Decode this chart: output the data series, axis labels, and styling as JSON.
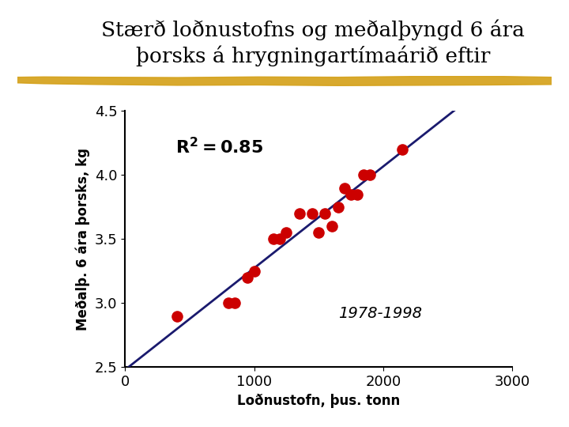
{
  "title": "Stærð loðnustofns og meðalþyngd 6 ára\nþorsks á hrygningartímaárið eftir",
  "xlabel": "Loðnustofn, þus. tonn",
  "ylabel": "Meðalþ. 6 ára þorsks, kg",
  "scatter_x": [
    400,
    800,
    850,
    950,
    1000,
    1150,
    1200,
    1250,
    1350,
    1450,
    1500,
    1550,
    1600,
    1650,
    1700,
    1750,
    1800,
    1850,
    1900,
    2150
  ],
  "scatter_y": [
    2.9,
    3.0,
    3.0,
    3.2,
    3.25,
    3.5,
    3.5,
    3.55,
    3.7,
    3.7,
    3.55,
    3.7,
    3.6,
    3.75,
    3.9,
    3.85,
    3.85,
    4.0,
    4.0,
    4.2
  ],
  "r2_label": "R² = 0.85",
  "year_label": "1978-1998",
  "xlim": [
    0,
    3000
  ],
  "ylim": [
    2.5,
    4.5
  ],
  "xticks": [
    0,
    1000,
    2000,
    3000
  ],
  "yticks": [
    2.5,
    3.0,
    3.5,
    4.0,
    4.5
  ],
  "dot_color": "#cc0000",
  "line_color": "#1a1a6e",
  "bg_color": "#ffffff",
  "title_fontsize": 19,
  "axis_label_fontsize": 12,
  "tick_fontsize": 13,
  "annotation_fontsize": 14,
  "gold_bar_color": "#d4a017"
}
